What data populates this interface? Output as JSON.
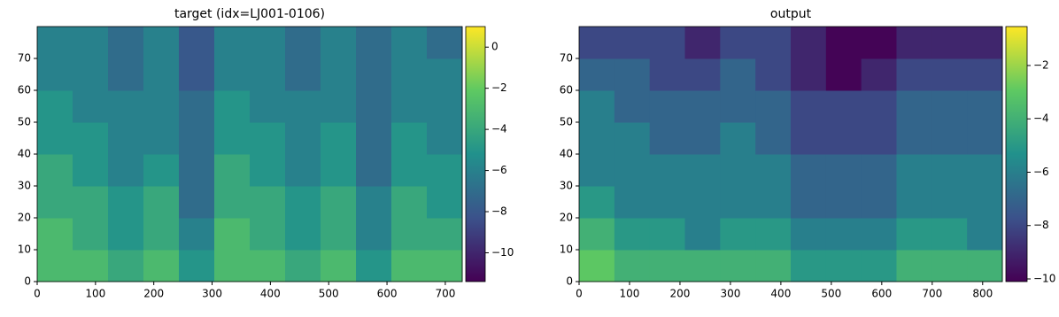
{
  "chart_data": [
    {
      "type": "heatmap",
      "title": "target (idx=LJ001-0106)",
      "colormap": "viridis",
      "xlim": [
        0,
        729
      ],
      "ylim": [
        0,
        80
      ],
      "xticks": [
        0,
        100,
        200,
        300,
        400,
        500,
        600,
        700
      ],
      "yticks": [
        0,
        10,
        20,
        30,
        40,
        50,
        60,
        70
      ],
      "values": [
        [
          -3,
          -3,
          -4,
          -3,
          -5,
          -3,
          -3,
          -4,
          -3,
          -5,
          -3,
          -3
        ],
        [
          -3,
          -4,
          -5,
          -4,
          -6,
          -3,
          -4,
          -5,
          -4,
          -6,
          -4,
          -4
        ],
        [
          -4,
          -4,
          -5,
          -4,
          -7,
          -4,
          -4,
          -5,
          -4,
          -6,
          -4,
          -5
        ],
        [
          -4,
          -5,
          -6,
          -5,
          -7,
          -4,
          -5,
          -6,
          -5,
          -7,
          -5,
          -5
        ],
        [
          -5,
          -5,
          -6,
          -6,
          -7,
          -5,
          -5,
          -6,
          -5,
          -7,
          -5,
          -6
        ],
        [
          -5,
          -6,
          -6,
          -6,
          -7,
          -5,
          -6,
          -6,
          -6,
          -7,
          -6,
          -6
        ],
        [
          -6,
          -6,
          -7,
          -6,
          -8,
          -6,
          -6,
          -7,
          -6,
          -7,
          -6,
          -6
        ],
        [
          -6,
          -6,
          -7,
          -6,
          -8,
          -6,
          -6,
          -7,
          -6,
          -7,
          -6,
          -7
        ]
      ],
      "clim": [
        -11.4,
        1.0
      ],
      "cticks": [
        0,
        {
          "value": -2,
          "label": "−2"
        },
        {
          "value": -4,
          "label": "−4"
        },
        {
          "value": -6,
          "label": "−6"
        },
        {
          "value": -8,
          "label": "−8"
        },
        {
          "value": -10,
          "label": "−10"
        }
      ]
    },
    {
      "type": "heatmap",
      "title": "output",
      "colormap": "viridis",
      "xlim": [
        0,
        839
      ],
      "ylim": [
        0,
        80
      ],
      "xticks": [
        0,
        100,
        200,
        300,
        400,
        500,
        600,
        700,
        800
      ],
      "yticks": [
        0,
        10,
        20,
        30,
        40,
        50,
        60,
        70
      ],
      "values": [
        [
          -3,
          -4,
          -4,
          -4,
          -4,
          -4,
          -5,
          -5,
          -5,
          -4,
          -4,
          -4
        ],
        [
          -4,
          -5,
          -5,
          -6,
          -5,
          -5,
          -6,
          -6,
          -6,
          -5,
          -5,
          -6
        ],
        [
          -5,
          -6,
          -6,
          -6,
          -6,
          -6,
          -7,
          -7,
          -7,
          -6,
          -6,
          -6
        ],
        [
          -6,
          -6,
          -6,
          -6,
          -6,
          -6,
          -7,
          -7,
          -7,
          -6,
          -6,
          -6
        ],
        [
          -6,
          -6,
          -7,
          -7,
          -6,
          -7,
          -8,
          -8,
          -8,
          -7,
          -7,
          -7
        ],
        [
          -6,
          -7,
          -7,
          -7,
          -7,
          -7,
          -8,
          -8,
          -8,
          -7,
          -7,
          -7
        ],
        [
          -7,
          -7,
          -8,
          -8,
          -7,
          -8,
          -9,
          -10,
          -9,
          -8,
          -8,
          -8
        ],
        [
          -8,
          -8,
          -8,
          -9,
          -8,
          -8,
          -9,
          -10,
          -10,
          -9,
          -9,
          -9
        ]
      ],
      "clim": [
        -10.1,
        -0.54
      ],
      "cticks": [
        {
          "value": -2,
          "label": "−2"
        },
        {
          "value": -4,
          "label": "−4"
        },
        {
          "value": -6,
          "label": "−6"
        },
        {
          "value": -8,
          "label": "−8"
        },
        {
          "value": -10,
          "label": "−10"
        }
      ]
    }
  ]
}
